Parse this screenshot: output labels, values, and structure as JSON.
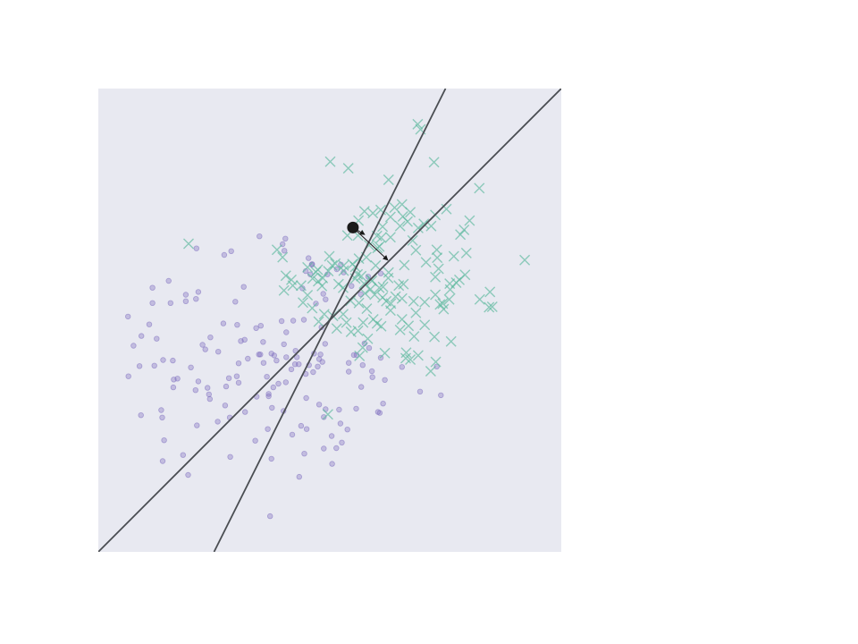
{
  "chart_data": {
    "type": "scatter",
    "title": "",
    "xlabel": "",
    "ylabel": "",
    "xlim": [
      0,
      100
    ],
    "ylim": [
      0,
      100
    ],
    "grid": false,
    "legend": "none",
    "colors": {
      "background": "#e8e9f1",
      "class_a": "#7b6bbd",
      "class_b": "#5bb89c",
      "line": "#4a4d52",
      "marker": "#1a1a1a",
      "arrow": "#1a1a1a"
    },
    "series": [
      {
        "name": "class-a",
        "marker": "circle",
        "points": [
          [
            6.4,
            50.8
          ],
          [
            11,
            49.1
          ],
          [
            9.3,
            46.6
          ],
          [
            12.6,
            46
          ],
          [
            7.6,
            44.5
          ],
          [
            12.1,
            40.2
          ],
          [
            16.1,
            41.3
          ],
          [
            21,
            34.9
          ],
          [
            30.8,
            45.5
          ],
          [
            35.1,
            48.8
          ],
          [
            31.6,
            45.8
          ],
          [
            25.9,
            43.2
          ],
          [
            17.1,
            37.4
          ],
          [
            23.1,
            43.7
          ],
          [
            21.6,
            36.8
          ],
          [
            28.2,
            37.5
          ],
          [
            32.3,
            41.7
          ],
          [
            27.6,
            35.7
          ],
          [
            30.3,
            36.5
          ],
          [
            37.8,
            35.5
          ],
          [
            36.4,
            37.8
          ],
          [
            38.5,
            41.3
          ],
          [
            38,
            42.4
          ],
          [
            35.7,
            40.8
          ],
          [
            37.4,
            42.8
          ],
          [
            40.6,
            42
          ],
          [
            42.6,
            43.4
          ],
          [
            34.7,
            42.6
          ],
          [
            43.3,
            40.5
          ],
          [
            42.9,
            42
          ],
          [
            46.6,
            42.8
          ],
          [
            47.7,
            41.6
          ],
          [
            48.4,
            41
          ],
          [
            48,
            42.6
          ],
          [
            49,
            44.9
          ],
          [
            47.4,
            40
          ],
          [
            45.5,
            40.3
          ],
          [
            46.4,
            38.8
          ],
          [
            44.8,
            38.4
          ],
          [
            40.5,
            36.6
          ],
          [
            41.7,
            39.4
          ],
          [
            38.9,
            36.3
          ],
          [
            36.8,
            33.6
          ],
          [
            14,
            41.4
          ],
          [
            16.3,
            37.2
          ],
          [
            16.2,
            35.5
          ],
          [
            13.6,
            30.6
          ],
          [
            9.2,
            29.5
          ],
          [
            6.5,
            37.9
          ],
          [
            8.9,
            40.1
          ],
          [
            21.3,
            27.3
          ],
          [
            28.4,
            29
          ],
          [
            25.8,
            28.1
          ],
          [
            27.4,
            31.6
          ],
          [
            37.5,
            31.1
          ],
          [
            40,
            30.4
          ],
          [
            43.8,
            27.2
          ],
          [
            45,
            26.5
          ],
          [
            47.7,
            31.8
          ],
          [
            44.9,
            33.2
          ],
          [
            48.7,
            29.1
          ],
          [
            50.4,
            25
          ],
          [
            51.4,
            22.4
          ],
          [
            31.7,
            30.2
          ],
          [
            20,
            39.8
          ],
          [
            22.5,
            44.7
          ],
          [
            24.2,
            46.3
          ],
          [
            30,
            49
          ],
          [
            34.1,
            48.3
          ],
          [
            39.6,
            49.8
          ],
          [
            44.4,
            50.1
          ],
          [
            48.2,
            48.5
          ],
          [
            44.1,
            56.9
          ],
          [
            45.8,
            59.9
          ],
          [
            47,
            53.6
          ],
          [
            46.1,
            62
          ],
          [
            45.4,
            63.4
          ],
          [
            49.5,
            59.9
          ],
          [
            51.5,
            61
          ],
          [
            53,
            60.3
          ],
          [
            40.4,
            67.6
          ],
          [
            40.2,
            65
          ],
          [
            39.8,
            66.4
          ],
          [
            34.8,
            68.1
          ],
          [
            31.4,
            57.2
          ],
          [
            29.6,
            54
          ],
          [
            28.7,
            64.9
          ],
          [
            27.2,
            64.1
          ],
          [
            21.1,
            54.6
          ],
          [
            21.6,
            56.1
          ],
          [
            15.6,
            53.7
          ],
          [
            11.7,
            53.7
          ],
          [
            11.7,
            57
          ],
          [
            15.2,
            58.5
          ],
          [
            18.9,
            55.5
          ],
          [
            18.9,
            54.1
          ],
          [
            27,
            49.3
          ],
          [
            21.2,
            65.5
          ],
          [
            36.8,
            34.1
          ],
          [
            49.1,
            30.8
          ],
          [
            52,
            30.7
          ],
          [
            53.8,
            26.4
          ],
          [
            52.6,
            23.6
          ],
          [
            50.5,
            19
          ],
          [
            43.4,
            16.2
          ],
          [
            37.4,
            20.1
          ],
          [
            52.3,
            27.7
          ],
          [
            37.1,
            7.7
          ],
          [
            28.5,
            20.5
          ],
          [
            18.3,
            20.9
          ],
          [
            14.2,
            24.1
          ],
          [
            19.4,
            16.6
          ],
          [
            13.9,
            19.6
          ],
          [
            13.8,
            29
          ],
          [
            35,
            42.6
          ],
          [
            35.6,
            45.3
          ],
          [
            29.9,
            37.9
          ],
          [
            30.3,
            40.7
          ],
          [
            23.9,
            34
          ],
          [
            23.6,
            35.4
          ],
          [
            24.1,
            33
          ],
          [
            41.9,
            25.3
          ],
          [
            44.5,
            21.2
          ],
          [
            48.7,
            22.3
          ],
          [
            33.9,
            24
          ],
          [
            36.6,
            26.5
          ],
          [
            34.2,
            33.5
          ],
          [
            40.1,
            44.8
          ],
          [
            42.5,
            40.5
          ],
          [
            55.8,
            42.5
          ],
          [
            55.2,
            42.5
          ],
          [
            57.5,
            45
          ],
          [
            58.5,
            44
          ],
          [
            57.1,
            40.3
          ],
          [
            59.1,
            39
          ],
          [
            61.9,
            37.1
          ],
          [
            61.5,
            32
          ],
          [
            65.6,
            39.9
          ],
          [
            60.4,
            30.2
          ],
          [
            60.8,
            30
          ],
          [
            55.7,
            30.9
          ],
          [
            69.5,
            34.6
          ],
          [
            74,
            33.8
          ],
          [
            73.1,
            40
          ],
          [
            56.8,
            35.6
          ],
          [
            59.2,
            37.7
          ],
          [
            61,
            41.9
          ],
          [
            54.1,
            38.9
          ],
          [
            54.1,
            40.8
          ],
          [
            42.1,
            49.9
          ],
          [
            40.6,
            47.4
          ],
          [
            49.1,
            54.5
          ],
          [
            48.6,
            55.7
          ],
          [
            46.2,
            62.1
          ],
          [
            44.8,
            60.6
          ],
          [
            52.4,
            62
          ],
          [
            54.7,
            57.4
          ],
          [
            56.7,
            55.6
          ],
          [
            58.3,
            59.4
          ],
          [
            61,
            60.1
          ]
        ]
      },
      {
        "name": "class-b",
        "marker": "x",
        "points": [
          [
            69,
            92.3
          ],
          [
            69.6,
            91.2
          ],
          [
            50.1,
            84.2
          ],
          [
            54,
            82.8
          ],
          [
            72.5,
            84.1
          ],
          [
            62.7,
            80.3
          ],
          [
            82.3,
            78.5
          ],
          [
            61,
            73.8
          ],
          [
            65.6,
            75
          ],
          [
            63.1,
            72.3
          ],
          [
            64,
            74.3
          ],
          [
            56.2,
            71.5
          ],
          [
            57.5,
            73.5
          ],
          [
            59.3,
            73.1
          ],
          [
            65.8,
            72.4
          ],
          [
            67.4,
            73.3
          ],
          [
            72.8,
            72.7
          ],
          [
            75.2,
            74
          ],
          [
            80.2,
            71.5
          ],
          [
            79,
            69.5
          ],
          [
            78.2,
            68.5
          ],
          [
            71.9,
            70.3
          ],
          [
            70.3,
            70.8
          ],
          [
            66.8,
            71.3
          ],
          [
            69.1,
            69.9
          ],
          [
            65.2,
            70.3
          ],
          [
            61.4,
            70.2
          ],
          [
            61.1,
            67.8
          ],
          [
            63.1,
            67.9
          ],
          [
            60.2,
            68.2
          ],
          [
            56.1,
            68.3
          ],
          [
            58.5,
            66.2
          ],
          [
            53.8,
            68.3
          ],
          [
            60.7,
            65.9
          ],
          [
            60.3,
            65.6
          ],
          [
            67.9,
            67.2
          ],
          [
            68.6,
            65.1
          ],
          [
            73.1,
            65.2
          ],
          [
            76.8,
            63.8
          ],
          [
            73.2,
            63.5
          ],
          [
            79.5,
            64.5
          ],
          [
            92.1,
            63
          ],
          [
            39.8,
            63.6
          ],
          [
            19.5,
            66.5
          ],
          [
            38.6,
            65.2
          ],
          [
            47,
            60.4
          ],
          [
            45.2,
            61.4
          ],
          [
            49.9,
            63.8
          ],
          [
            54.9,
            62.1
          ],
          [
            56.8,
            59.5
          ],
          [
            53,
            60.7
          ],
          [
            56.3,
            63.3
          ],
          [
            57.9,
            63.6
          ],
          [
            59.9,
            61.8
          ],
          [
            62.7,
            60.3
          ],
          [
            66.1,
            61.9
          ],
          [
            70.8,
            62.5
          ],
          [
            73.5,
            61.1
          ],
          [
            72.8,
            59.3
          ],
          [
            75.9,
            57.9
          ],
          [
            77.3,
            58.1
          ],
          [
            78,
            58.7
          ],
          [
            79.2,
            59.8
          ],
          [
            82.4,
            54.5
          ],
          [
            84.4,
            52.8
          ],
          [
            74.6,
            52.4
          ],
          [
            73.8,
            53.4
          ],
          [
            70.5,
            53.9
          ],
          [
            68.1,
            54.1
          ],
          [
            65.6,
            54.7
          ],
          [
            64.2,
            55.1
          ],
          [
            65.9,
            57.8
          ],
          [
            64.9,
            57.5
          ],
          [
            61.5,
            57.2
          ],
          [
            59.1,
            58.5
          ],
          [
            58.9,
            58.8
          ],
          [
            56,
            59.9
          ],
          [
            55.5,
            61.5
          ],
          [
            53,
            61.8
          ],
          [
            51.2,
            62.2
          ],
          [
            49.7,
            60.6
          ],
          [
            48.3,
            57.4
          ],
          [
            47.4,
            60.9
          ],
          [
            47.5,
            58.4
          ],
          [
            46.3,
            59
          ],
          [
            48.5,
            59.1
          ],
          [
            50.5,
            61.8
          ],
          [
            51.9,
            57.8
          ],
          [
            52.9,
            57
          ],
          [
            54.5,
            54.2
          ],
          [
            56.3,
            53.7
          ],
          [
            57.6,
            55.8
          ],
          [
            59.7,
            55.5
          ],
          [
            60.7,
            57
          ],
          [
            61.4,
            54.9
          ],
          [
            62.2,
            54.1
          ],
          [
            63.2,
            53.6
          ],
          [
            62.6,
            59.1
          ],
          [
            72.6,
            46.4
          ],
          [
            59.4,
            50.2
          ],
          [
            61.1,
            48.7
          ],
          [
            63.1,
            52.1
          ],
          [
            67,
            48.8
          ],
          [
            68.6,
            51.6
          ],
          [
            72.8,
            55.5
          ],
          [
            74.4,
            53.6
          ],
          [
            75.8,
            54.5
          ],
          [
            84.6,
            56.1
          ],
          [
            85.1,
            52.9
          ],
          [
            76.2,
            45.4
          ],
          [
            72.9,
            41
          ],
          [
            71.8,
            39
          ],
          [
            69.1,
            42.4
          ],
          [
            66.5,
            43
          ],
          [
            66.4,
            41.8
          ],
          [
            61.9,
            42.9
          ],
          [
            56.4,
            42.3
          ],
          [
            57.1,
            44.1
          ],
          [
            58.2,
            46
          ],
          [
            56.1,
            47.7
          ],
          [
            54.6,
            47.5
          ],
          [
            53.6,
            49.5
          ],
          [
            51.5,
            48.2
          ],
          [
            50.7,
            50.9
          ],
          [
            48.8,
            51.3
          ],
          [
            47.6,
            49.7
          ],
          [
            46.2,
            52.6
          ],
          [
            45.2,
            55.4
          ],
          [
            44.2,
            53.8
          ],
          [
            42,
            57.5
          ],
          [
            40.1,
            56.4
          ],
          [
            40.5,
            59.6
          ],
          [
            41.7,
            58.7
          ],
          [
            43.8,
            57.5
          ],
          [
            58,
            52.5
          ],
          [
            60.2,
            49.3
          ],
          [
            65.2,
            47.9
          ],
          [
            65.6,
            50.2
          ],
          [
            68.2,
            46.5
          ],
          [
            70.5,
            49
          ],
          [
            76,
            56.6
          ],
          [
            49.6,
            29.7
          ],
          [
            57.2,
            49.5
          ],
          [
            52.9,
            51.3
          ],
          [
            57.4,
            57.9
          ],
          [
            58.8,
            56.7
          ],
          [
            67.4,
            41.5
          ],
          [
            55.5,
            59
          ]
        ]
      }
    ],
    "lines": [
      {
        "name": "boundary-line-steep",
        "from": [
          25,
          0
        ],
        "to": [
          75,
          100
        ]
      },
      {
        "name": "boundary-line-shallow",
        "from": [
          0,
          0
        ],
        "to": [
          100,
          100
        ]
      }
    ],
    "reference_point": [
      55,
      70
    ],
    "vectors": [
      {
        "name": "arrow-long",
        "from": [
          55,
          70
        ],
        "to": [
          62.5,
          63
        ]
      },
      {
        "name": "arrow-short",
        "from": [
          55,
          70
        ],
        "to": [
          57.5,
          68.5
        ]
      }
    ]
  }
}
